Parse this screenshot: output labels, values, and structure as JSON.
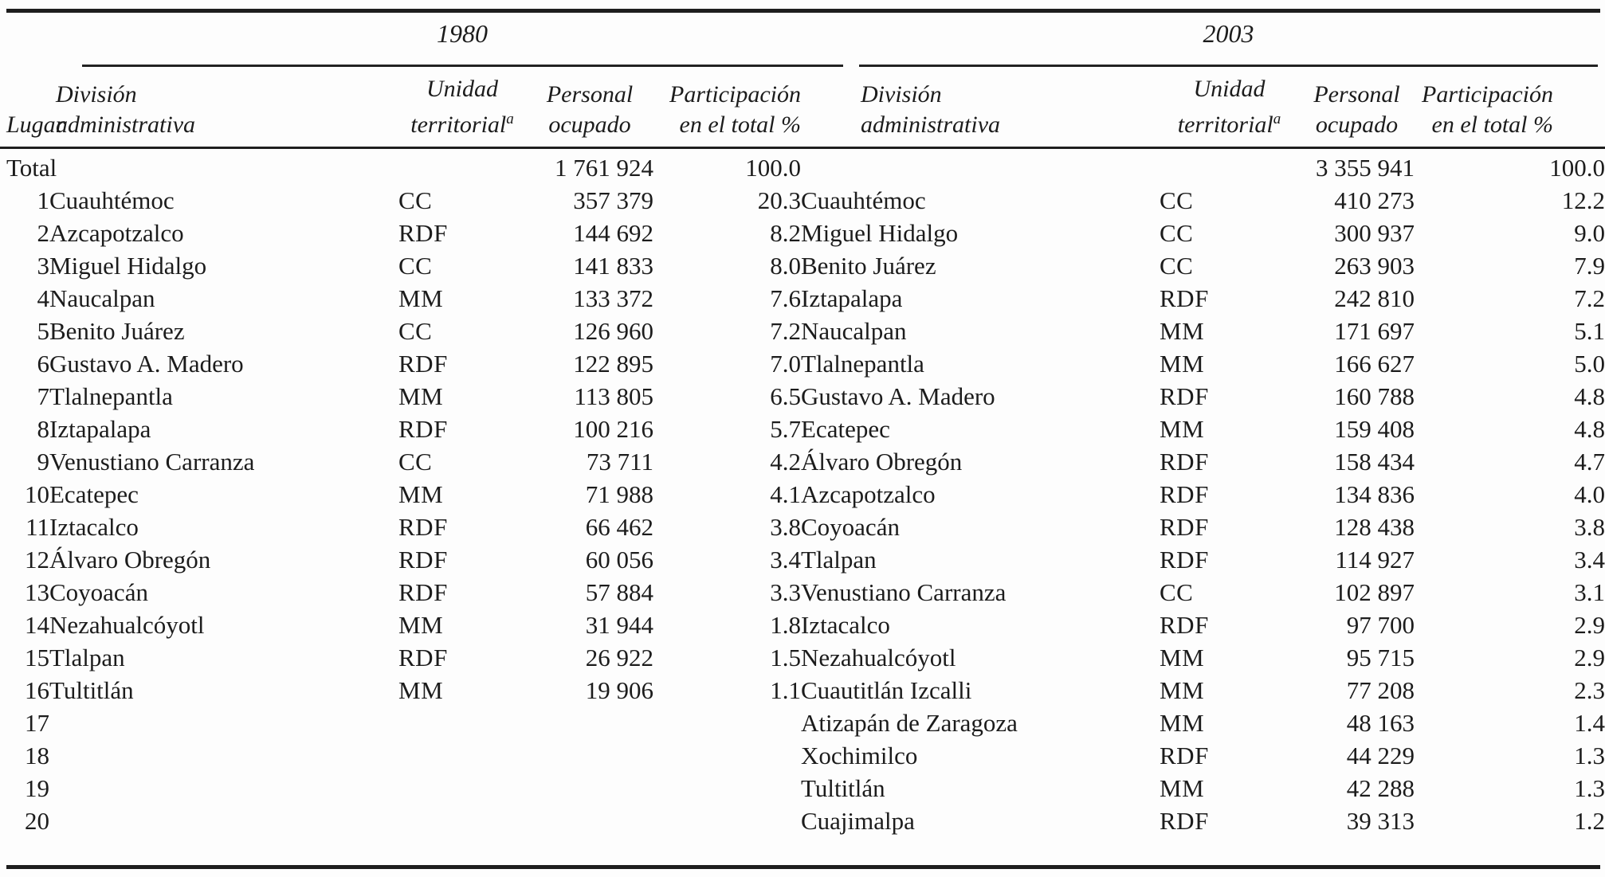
{
  "colors": {
    "ink": "#1c1c1c",
    "paper": "#fdfdfd",
    "rule": "#1e1e1e"
  },
  "groups": {
    "g1980": "1980",
    "g2003": "2003"
  },
  "columns": {
    "lugar": "Lugar",
    "division_l1": "División",
    "division_l2": "administrativa",
    "unidad_l1": "Unidad",
    "unidad_l2": "territorial",
    "unidad_footnote": "a",
    "personal_l1": "Personal",
    "personal_l2": "ocupado",
    "participacion_l1": "Participación",
    "participacion_l2": "en el total %"
  },
  "rows": [
    {
      "lugar": "Total",
      "d1": "",
      "u1": "",
      "p1": "1 761 924",
      "s1": "100.0",
      "d2": "",
      "u2": "",
      "p2": "3 355 941",
      "s2": "100.0"
    },
    {
      "lugar": "1",
      "d1": "Cuauhtémoc",
      "u1": "CC",
      "p1": "357 379",
      "s1": "20.3",
      "d2": "Cuauhtémoc",
      "u2": "CC",
      "p2": "410 273",
      "s2": "12.2"
    },
    {
      "lugar": "2",
      "d1": "Azcapotzalco",
      "u1": "RDF",
      "p1": "144 692",
      "s1": "8.2",
      "d2": "Miguel Hidalgo",
      "u2": "CC",
      "p2": "300 937",
      "s2": "9.0"
    },
    {
      "lugar": "3",
      "d1": "Miguel Hidalgo",
      "u1": "CC",
      "p1": "141 833",
      "s1": "8.0",
      "d2": "Benito Juárez",
      "u2": "CC",
      "p2": "263 903",
      "s2": "7.9"
    },
    {
      "lugar": "4",
      "d1": "Naucalpan",
      "u1": "MM",
      "p1": "133 372",
      "s1": "7.6",
      "d2": "Iztapalapa",
      "u2": "RDF",
      "p2": "242 810",
      "s2": "7.2"
    },
    {
      "lugar": "5",
      "d1": "Benito Juárez",
      "u1": "CC",
      "p1": "126 960",
      "s1": "7.2",
      "d2": "Naucalpan",
      "u2": "MM",
      "p2": "171 697",
      "s2": "5.1"
    },
    {
      "lugar": "6",
      "d1": "Gustavo A. Madero",
      "u1": "RDF",
      "p1": "122 895",
      "s1": "7.0",
      "d2": "Tlalnepantla",
      "u2": "MM",
      "p2": "166 627",
      "s2": "5.0"
    },
    {
      "lugar": "7",
      "d1": "Tlalnepantla",
      "u1": "MM",
      "p1": "113 805",
      "s1": "6.5",
      "d2": "Gustavo A. Madero",
      "u2": "RDF",
      "p2": "160 788",
      "s2": "4.8"
    },
    {
      "lugar": "8",
      "d1": "Iztapalapa",
      "u1": "RDF",
      "p1": "100 216",
      "s1": "5.7",
      "d2": "Ecatepec",
      "u2": "MM",
      "p2": "159 408",
      "s2": "4.8"
    },
    {
      "lugar": "9",
      "d1": "Venustiano Carranza",
      "u1": "CC",
      "p1": "73 711",
      "s1": "4.2",
      "d2": "Álvaro Obregón",
      "u2": "RDF",
      "p2": "158 434",
      "s2": "4.7"
    },
    {
      "lugar": "10",
      "d1": "Ecatepec",
      "u1": "MM",
      "p1": "71 988",
      "s1": "4.1",
      "d2": "Azcapotzalco",
      "u2": "RDF",
      "p2": "134 836",
      "s2": "4.0"
    },
    {
      "lugar": "11",
      "d1": "Iztacalco",
      "u1": "RDF",
      "p1": "66 462",
      "s1": "3.8",
      "d2": "Coyoacán",
      "u2": "RDF",
      "p2": "128 438",
      "s2": "3.8"
    },
    {
      "lugar": "12",
      "d1": "Álvaro Obregón",
      "u1": "RDF",
      "p1": "60 056",
      "s1": "3.4",
      "d2": "Tlalpan",
      "u2": "RDF",
      "p2": "114 927",
      "s2": "3.4"
    },
    {
      "lugar": "13",
      "d1": "Coyoacán",
      "u1": "RDF",
      "p1": "57 884",
      "s1": "3.3",
      "d2": "Venustiano Carranza",
      "u2": "CC",
      "p2": "102 897",
      "s2": "3.1"
    },
    {
      "lugar": "14",
      "d1": "Nezahualcóyotl",
      "u1": "MM",
      "p1": "31 944",
      "s1": "1.8",
      "d2": "Iztacalco",
      "u2": "RDF",
      "p2": "97 700",
      "s2": "2.9"
    },
    {
      "lugar": "15",
      "d1": "Tlalpan",
      "u1": "RDF",
      "p1": "26 922",
      "s1": "1.5",
      "d2": "Nezahualcóyotl",
      "u2": "MM",
      "p2": "95 715",
      "s2": "2.9"
    },
    {
      "lugar": "16",
      "d1": "Tultitlán",
      "u1": "MM",
      "p1": "19 906",
      "s1": "1.1",
      "d2": "Cuautitlán Izcalli",
      "u2": "MM",
      "p2": "77 208",
      "s2": "2.3"
    },
    {
      "lugar": "17",
      "d1": "",
      "u1": "",
      "p1": "",
      "s1": "",
      "d2": "Atizapán de Zaragoza",
      "u2": "MM",
      "p2": "48 163",
      "s2": "1.4"
    },
    {
      "lugar": "18",
      "d1": "",
      "u1": "",
      "p1": "",
      "s1": "",
      "d2": "Xochimilco",
      "u2": "RDF",
      "p2": "44 229",
      "s2": "1.3"
    },
    {
      "lugar": "19",
      "d1": "",
      "u1": "",
      "p1": "",
      "s1": "",
      "d2": "Tultitlán",
      "u2": "MM",
      "p2": "42 288",
      "s2": "1.3"
    },
    {
      "lugar": "20",
      "d1": "",
      "u1": "",
      "p1": "",
      "s1": "",
      "d2": "Cuajimalpa",
      "u2": "RDF",
      "p2": "39 313",
      "s2": "1.2"
    }
  ]
}
